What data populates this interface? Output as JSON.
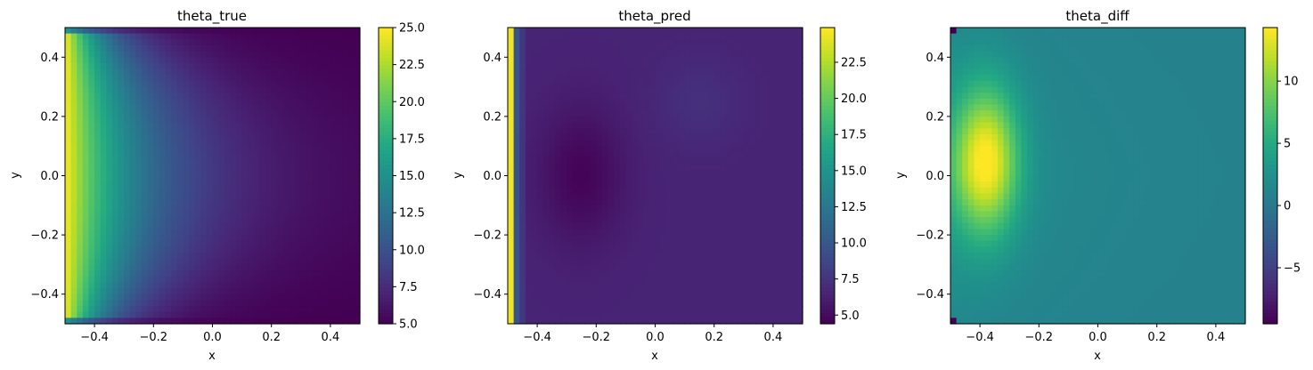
{
  "chart_data": [
    {
      "type": "heatmap",
      "title": "theta_true",
      "xlabel": "x",
      "ylabel": "y",
      "xlim": [
        -0.5,
        0.5
      ],
      "ylim": [
        -0.5,
        0.5
      ],
      "x_ticks": [
        -0.4,
        -0.2,
        0.0,
        0.2,
        0.4
      ],
      "y_ticks": [
        -0.4,
        -0.2,
        0.0,
        0.2,
        0.4
      ],
      "x_tick_labels": [
        "−0.4",
        "−0.2",
        "0.0",
        "0.2",
        "0.4"
      ],
      "y_tick_labels": [
        "−0.4",
        "−0.2",
        "0.0",
        "0.2",
        "0.4"
      ],
      "colormap": "viridis",
      "colorbar": {
        "min": 5.0,
        "max": 25.0,
        "ticks": [
          5.0,
          7.5,
          10.0,
          12.5,
          15.0,
          17.5,
          20.0,
          22.5,
          25.0
        ],
        "tick_labels": [
          "5.0",
          "7.5",
          "10.0",
          "12.5",
          "15.0",
          "17.5",
          "20.0",
          "22.5",
          "25.0"
        ]
      },
      "field_description_values": {
        "left_edge_value": 25.0,
        "right_edge_value": 5.0,
        "decay_length": 0.28,
        "edge_bands_y": [
          -0.48,
          0.48
        ]
      }
    },
    {
      "type": "heatmap",
      "title": "theta_pred",
      "xlabel": "x",
      "ylabel": "y",
      "xlim": [
        -0.5,
        0.5
      ],
      "ylim": [
        -0.5,
        0.5
      ],
      "x_ticks": [
        -0.4,
        -0.2,
        0.0,
        0.2,
        0.4
      ],
      "y_ticks": [
        -0.4,
        -0.2,
        0.0,
        0.2,
        0.4
      ],
      "x_tick_labels": [
        "−0.4",
        "−0.2",
        "0.0",
        "0.2",
        "0.4"
      ],
      "y_tick_labels": [
        "−0.4",
        "−0.2",
        "0.0",
        "0.2",
        "0.4"
      ],
      "colormap": "viridis",
      "colorbar": {
        "min": 4.4,
        "max": 24.9,
        "ticks": [
          5.0,
          7.5,
          10.0,
          12.5,
          15.0,
          17.5,
          20.0,
          22.5
        ],
        "tick_labels": [
          "5.0",
          "7.5",
          "10.0",
          "12.5",
          "15.0",
          "17.5",
          "20.0",
          "22.5"
        ]
      },
      "field_description_values": {
        "left_edge_value": 24.5,
        "background_value": 6.5,
        "minimum_value": 4.6,
        "minimum_location": [
          -0.25,
          0.0
        ]
      }
    },
    {
      "type": "heatmap",
      "title": "theta_diff",
      "xlabel": "x",
      "ylabel": "y",
      "xlim": [
        -0.5,
        0.5
      ],
      "ylim": [
        -0.5,
        0.5
      ],
      "x_ticks": [
        -0.4,
        -0.2,
        0.0,
        0.2,
        0.4
      ],
      "y_ticks": [
        -0.4,
        -0.2,
        0.0,
        0.2,
        0.4
      ],
      "x_tick_labels": [
        "−0.4",
        "−0.2",
        "0.0",
        "0.2",
        "0.4"
      ],
      "y_tick_labels": [
        "−0.4",
        "−0.2",
        "0.0",
        "0.2",
        "0.4"
      ],
      "colormap": "viridis",
      "colorbar": {
        "min": -9.5,
        "max": 14.3,
        "ticks": [
          -5,
          0,
          5,
          10
        ],
        "tick_labels": [
          "−5",
          "0",
          "5",
          "10"
        ]
      },
      "field_description_values": {
        "peak_value": 13.5,
        "peak_location": [
          -0.38,
          0.05
        ],
        "background_value": 1.0,
        "minimum_value": -9.5
      }
    }
  ]
}
